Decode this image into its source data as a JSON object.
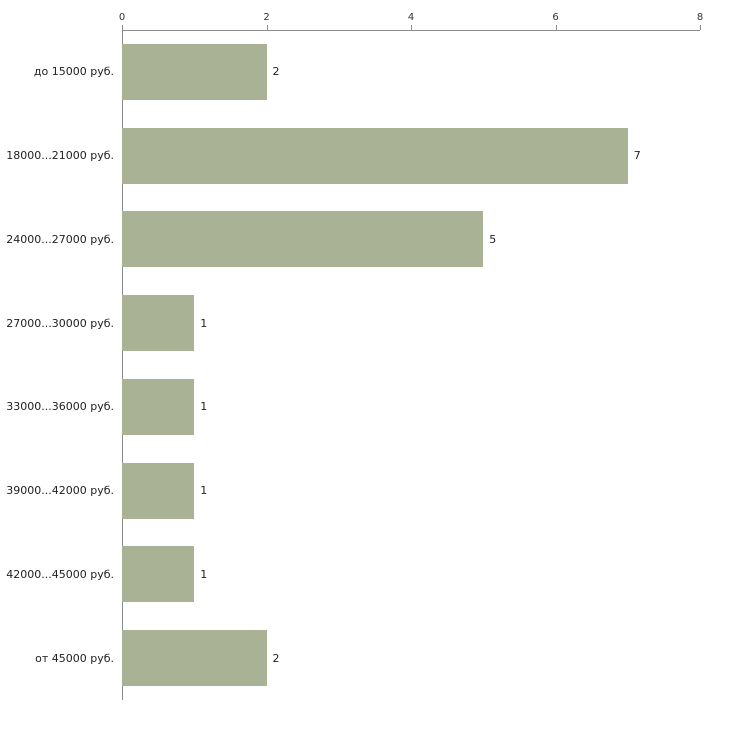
{
  "chart_data": {
    "type": "bar",
    "orientation": "horizontal",
    "title": "",
    "xlabel": "",
    "ylabel": "",
    "categories": [
      "до 15000 руб.",
      "18000...21000 руб.",
      "24000...27000 руб.",
      "27000...30000 руб.",
      "33000...36000 руб.",
      "39000...42000 руб.",
      "42000...45000 руб.",
      "от 45000 руб."
    ],
    "values": [
      2,
      7,
      5,
      1,
      1,
      1,
      1,
      2
    ],
    "xlim": [
      0,
      8
    ],
    "xticks": [
      0,
      2,
      4,
      6,
      8
    ],
    "grid": false,
    "legend": false,
    "value_labels": true,
    "colors": {
      "bar": "#a9b294",
      "axis": "#8c8c8c",
      "text": "#222222"
    }
  }
}
